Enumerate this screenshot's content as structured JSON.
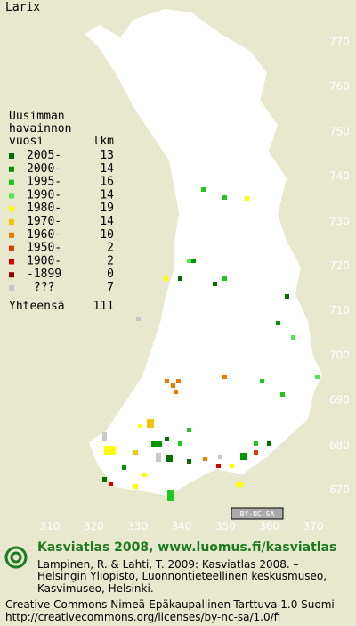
{
  "title": "Larix",
  "legend": {
    "heading": [
      "Uusimman",
      "havainnon",
      "vuosi"
    ],
    "count_heading": "lkm",
    "rows": [
      {
        "label": "2005-",
        "count": 13,
        "color": "#006e00"
      },
      {
        "label": "2000-",
        "count": 14,
        "color": "#009600"
      },
      {
        "label": "1995-",
        "count": 16,
        "color": "#1ec81e"
      },
      {
        "label": "1990-",
        "count": 14,
        "color": "#50e650"
      },
      {
        "label": "1980-",
        "count": 19,
        "color": "#ffff00"
      },
      {
        "label": "1970-",
        "count": 14,
        "color": "#f0c800"
      },
      {
        "label": "1960-",
        "count": 10,
        "color": "#f07800"
      },
      {
        "label": "1950-",
        "count": 2,
        "color": "#e03c00"
      },
      {
        "label": "1900-",
        "count": 2,
        "color": "#d20000"
      },
      {
        "label": "-1899",
        "count": 0,
        "color": "#8c0000"
      },
      {
        "label": "???",
        "count": 7,
        "color": "#c8c8c8"
      }
    ],
    "total_label": "Yhteensä",
    "total": 111
  },
  "map": {
    "ylim": [
      670,
      770
    ],
    "yticks": [
      770,
      760,
      750,
      740,
      730,
      720,
      710,
      700,
      690,
      680,
      670
    ],
    "xlim": [
      310,
      370
    ],
    "xticks": [
      310,
      320,
      330,
      340,
      350,
      360,
      370
    ]
  },
  "badge": "BY-NC-SA",
  "footer": {
    "heading": "Kasviatlas 2008, www.luomus.fi/kasviatlas",
    "citation": [
      "Lampinen, R. & Lahti, T. 2009: Kasviatlas 2008. –",
      "Helsingin Yliopisto, Luonnontieteellinen keskusmuseo,",
      "Kasvimuseo, Helsinki."
    ],
    "license": [
      "Creative Commons Nimeä-Epäkaupallinen-Tarttuva 1.0 Suomi",
      "http://creativecommons.org/licenses/by-nc-sa/1.0/fi"
    ]
  }
}
